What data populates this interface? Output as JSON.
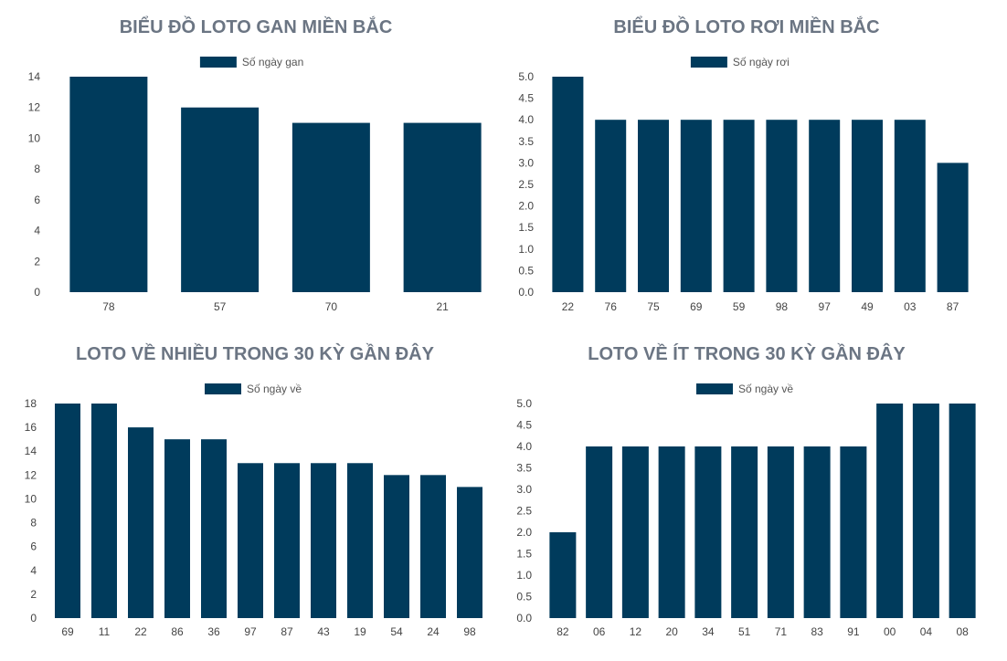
{
  "colors": {
    "bar": "#003b5c",
    "title": "#6b7583",
    "tick": "#444444"
  },
  "charts": [
    {
      "title": "BIỂU ĐỒ LOTO GAN MIỀN BẮC",
      "chart_data": {
        "type": "bar",
        "title": "BIỂU ĐỒ LOTO GAN MIỀN BẮC",
        "legend": {
          "label": "Số ngày gan",
          "position": "top"
        },
        "categories": [
          "78",
          "57",
          "70",
          "21"
        ],
        "series": [
          {
            "name": "Số ngày gan",
            "values": [
              14,
              12,
              11,
              11
            ]
          }
        ],
        "ylim": [
          0,
          14
        ],
        "yticks": [
          0,
          2,
          4,
          6,
          8,
          10,
          12,
          14
        ],
        "ytick_decimals": 0,
        "grid": false
      }
    },
    {
      "title": "BIỂU ĐỒ LOTO RƠI MIỀN BẮC",
      "chart_data": {
        "type": "bar",
        "title": "BIỂU ĐỒ LOTO RƠI MIỀN BẮC",
        "legend": {
          "label": "Số ngày rơi",
          "position": "top"
        },
        "categories": [
          "22",
          "76",
          "75",
          "69",
          "59",
          "98",
          "97",
          "49",
          "03",
          "87"
        ],
        "series": [
          {
            "name": "Số ngày rơi",
            "values": [
              5,
              4,
              4,
              4,
              4,
              4,
              4,
              4,
              4,
              3
            ]
          }
        ],
        "ylim": [
          0,
          5
        ],
        "yticks": [
          0,
          0.5,
          1,
          1.5,
          2,
          2.5,
          3,
          3.5,
          4,
          4.5,
          5
        ],
        "ytick_decimals": 1,
        "grid": false
      }
    },
    {
      "title": "LOTO VỀ NHIỀU TRONG 30 KỲ GẦN ĐÂY",
      "chart_data": {
        "type": "bar",
        "title": "LOTO VỀ NHIỀU TRONG 30 KỲ GẦN ĐÂY",
        "legend": {
          "label": "Số ngày về",
          "position": "top"
        },
        "categories": [
          "69",
          "11",
          "22",
          "86",
          "36",
          "97",
          "87",
          "43",
          "19",
          "54",
          "24",
          "98"
        ],
        "series": [
          {
            "name": "Số ngày về",
            "values": [
              18,
              18,
              16,
              15,
              15,
              13,
              13,
              13,
              13,
              12,
              12,
              11
            ]
          }
        ],
        "ylim": [
          0,
          18
        ],
        "yticks": [
          0,
          2,
          4,
          6,
          8,
          10,
          12,
          14,
          16,
          18
        ],
        "ytick_decimals": 0,
        "grid": false
      }
    },
    {
      "title": "LOTO VỀ ÍT TRONG 30 KỲ GẦN ĐÂY",
      "chart_data": {
        "type": "bar",
        "title": "LOTO VỀ ÍT TRONG 30 KỲ GẦN ĐÂY",
        "legend": {
          "label": "Số ngày về",
          "position": "top"
        },
        "categories": [
          "82",
          "06",
          "12",
          "20",
          "34",
          "51",
          "71",
          "83",
          "91",
          "00",
          "04",
          "08"
        ],
        "series": [
          {
            "name": "Số ngày về",
            "values": [
              2,
              4,
              4,
              4,
              4,
              4,
              4,
              4,
              4,
              5,
              5,
              5
            ]
          }
        ],
        "ylim": [
          0,
          5
        ],
        "yticks": [
          0,
          0.5,
          1,
          1.5,
          2,
          2.5,
          3,
          3.5,
          4,
          4.5,
          5
        ],
        "ytick_decimals": 1,
        "grid": false
      }
    }
  ]
}
